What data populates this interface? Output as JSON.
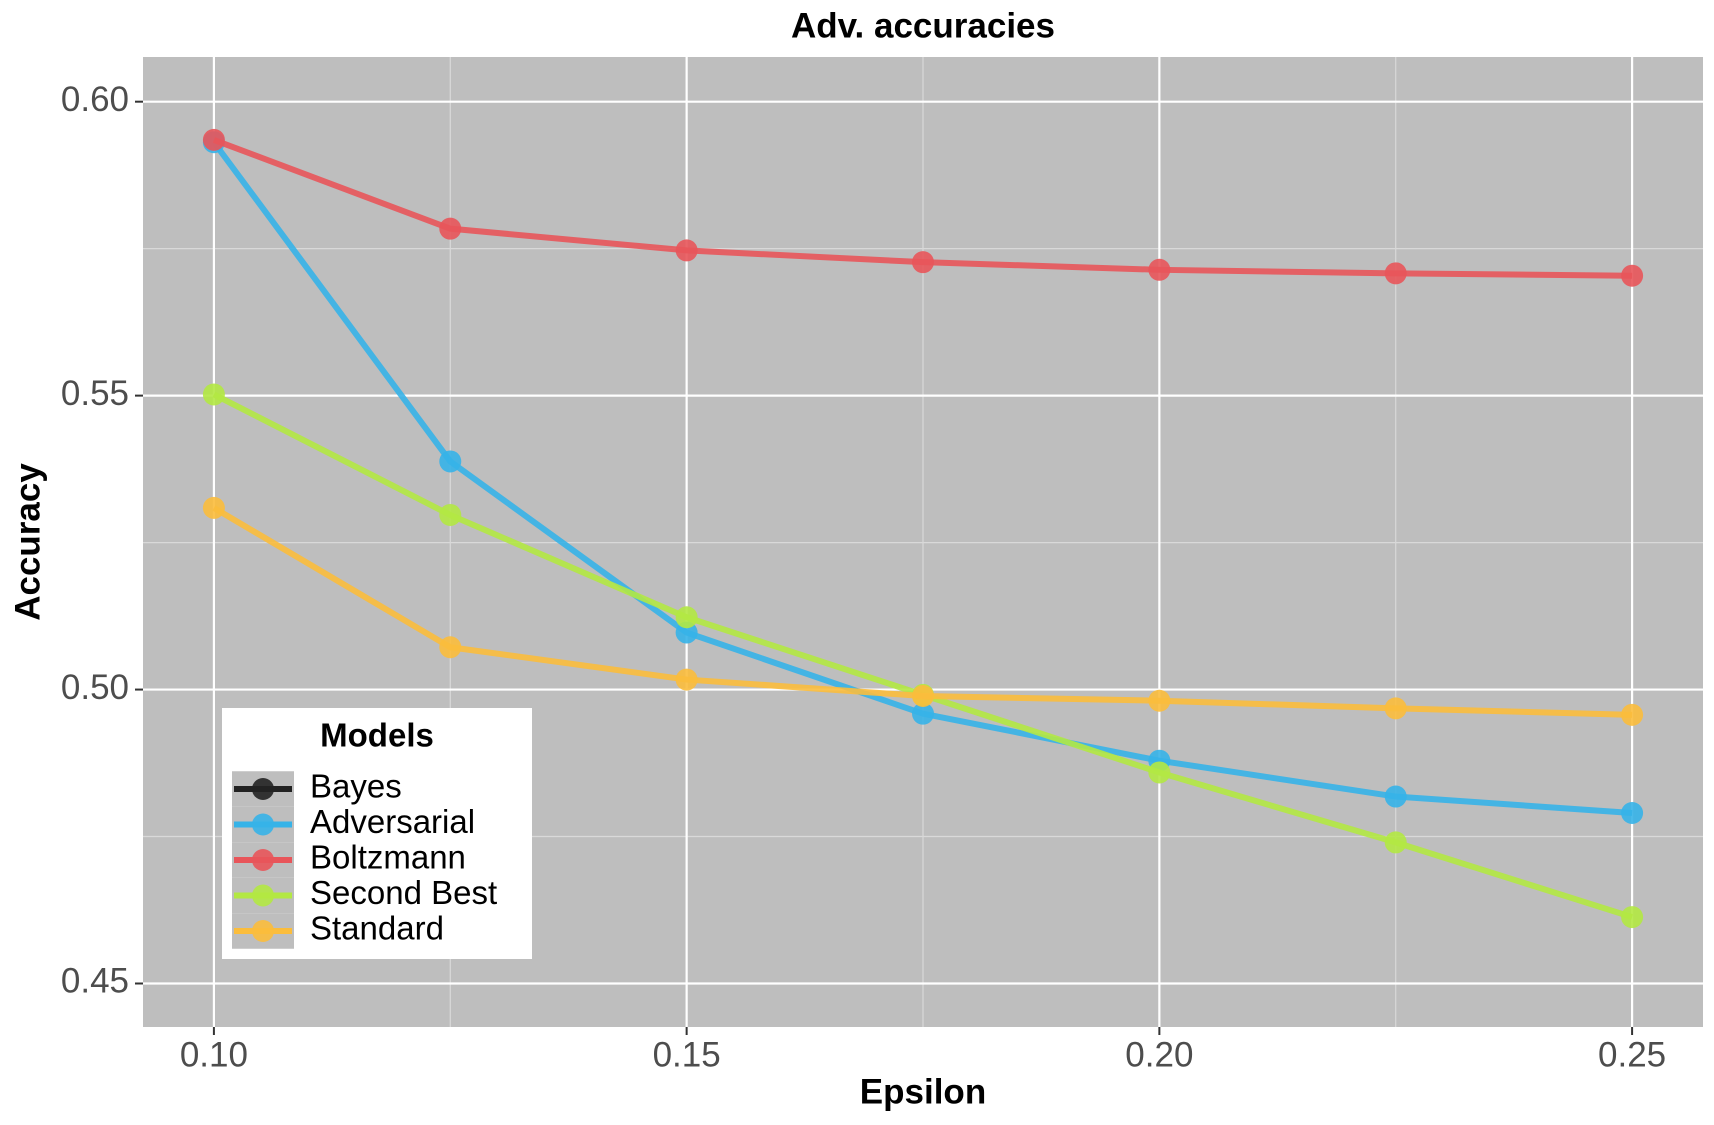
{
  "chart_data": {
    "type": "line",
    "title": "Adv. accuracies",
    "x_label": "Epsilon",
    "y_label": "Accuracy",
    "legend_title": "Models",
    "legend_position": "bottom-left",
    "grid": true,
    "x": [
      0.1,
      0.125,
      0.15,
      0.175,
      0.2,
      0.225,
      0.25
    ],
    "xlim": [
      0.0925,
      0.2575
    ],
    "xticks": [
      {
        "value": 0.1,
        "label": "0.10"
      },
      0.15,
      {
        "value": 0.2,
        "label": "0.20"
      },
      0.25
    ],
    "ylim": [
      0.4426,
      0.6076
    ],
    "yticks": [
      0.45,
      {
        "value": 0.5,
        "label": "0.50"
      },
      0.55,
      {
        "value": 0.6,
        "label": "0.60"
      }
    ],
    "series": [
      {
        "name": "Bayes",
        "color": "#222222",
        "values": [
          null,
          null,
          null,
          null,
          null,
          null,
          null
        ]
      },
      {
        "name": "Adversarial",
        "color": "#36b3e8",
        "values": [
          0.5931,
          0.5388,
          0.5097,
          0.4959,
          0.4879,
          0.4818,
          0.479
        ]
      },
      {
        "name": "Boltzmann",
        "color": "#e8555a",
        "values": [
          0.5935,
          0.5784,
          0.5747,
          0.5727,
          0.5714,
          0.5708,
          0.5704
        ]
      },
      {
        "name": "Second Best",
        "color": "#b3e843",
        "values": [
          0.5502,
          0.5297,
          0.5123,
          0.4991,
          0.4859,
          0.474,
          0.4613
        ]
      },
      {
        "name": "Standard",
        "color": "#fbbd3c",
        "values": [
          0.5309,
          0.5072,
          0.5017,
          0.4989,
          0.4981,
          0.4968,
          0.4957
        ]
      }
    ]
  }
}
